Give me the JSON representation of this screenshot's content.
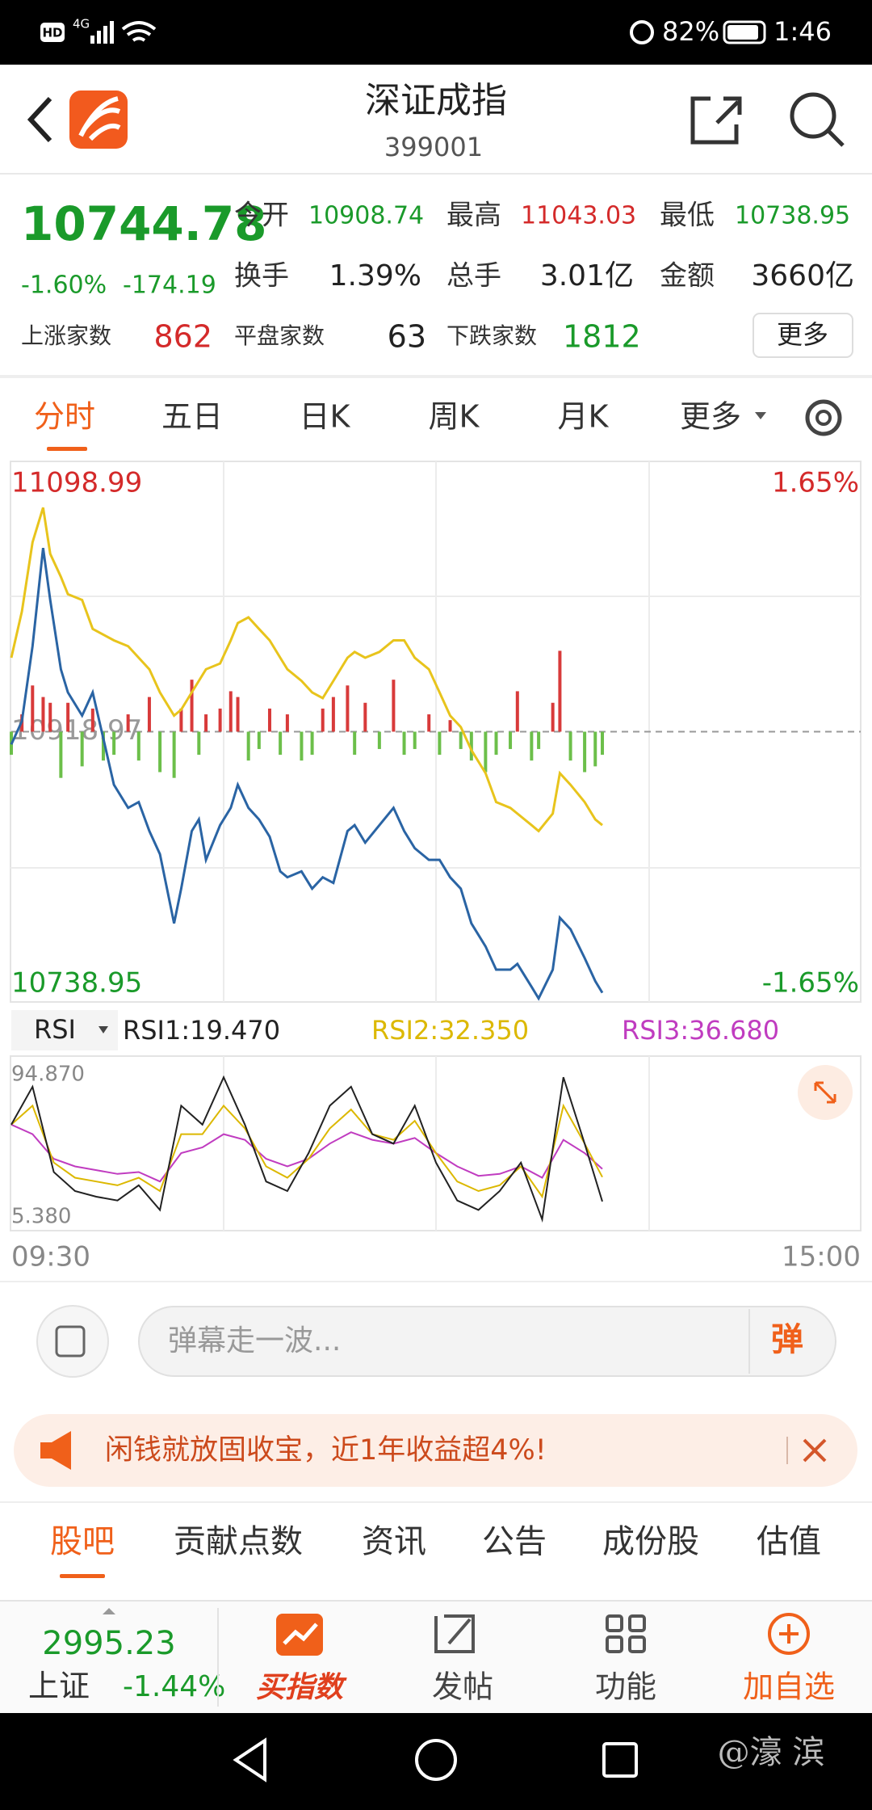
{
  "status_bar": {
    "hd": "HD",
    "network": "4G",
    "battery": "82%",
    "time": "1:46"
  },
  "header": {
    "title": "深证成指",
    "code": "399001"
  },
  "quote": {
    "price": "10744.78",
    "change_pct": "-1.60%",
    "change": "-174.19",
    "stats": [
      {
        "label": "今开",
        "value": "10908.74"
      },
      {
        "label": "最高",
        "value": "11043.03"
      },
      {
        "label": "最低",
        "value": "10738.95"
      },
      {
        "label": "换手",
        "value": "1.39%"
      },
      {
        "label": "总手",
        "value": "3.01亿"
      },
      {
        "label": "金额",
        "value": "3660亿"
      }
    ],
    "breadth": [
      {
        "label": "上涨家数",
        "value": "862"
      },
      {
        "label": "平盘家数",
        "value": "63"
      },
      {
        "label": "下跌家数",
        "value": "1812"
      }
    ],
    "more_button": "更多"
  },
  "chart_tabs": [
    "分时",
    "五日",
    "日K",
    "周K",
    "月K",
    "更多"
  ],
  "intraday": {
    "type": "line",
    "xlim": [
      0,
      240
    ],
    "xticks": [
      {
        "value": 0,
        "label": "09:30"
      },
      {
        "value": 240,
        "label": "15:00"
      }
    ],
    "ylim": [
      10738.95,
      11098.99
    ],
    "yticks": [
      10738.95,
      10918.97,
      11098.99
    ],
    "y2lim": [
      -1.65,
      1.65
    ],
    "y2ticks": [
      {
        "value": -1.65,
        "label": "-1.65%"
      },
      {
        "value": 1.65,
        "label": "1.65%"
      }
    ],
    "x": [
      0,
      3,
      6,
      9,
      11,
      14,
      16,
      20,
      23,
      26,
      29,
      33,
      36,
      39,
      42,
      46,
      48,
      51,
      53,
      55,
      59,
      62,
      64,
      67,
      70,
      73,
      76,
      78,
      82,
      85,
      88,
      91,
      95,
      97,
      100,
      104,
      108,
      111,
      114,
      118,
      121,
      124,
      127,
      130,
      134,
      137,
      141,
      143,
      147,
      149,
      153,
      155,
      158,
      162,
      165,
      167
    ],
    "series": [
      {
        "color": "#2a64a4",
        "values": [
          10910.5,
          10925.9,
          10975.9,
          11041.3,
          11006.7,
          10960.5,
          10945.1,
          10929.7,
          10945.1,
          10914.4,
          10883.6,
          10868.2,
          10872.1,
          10852.8,
          10837.4,
          10791.3,
          10814.4,
          10852.8,
          10860.5,
          10833.6,
          10856.7,
          10868.2,
          10883.6,
          10868.2,
          10860.5,
          10849.0,
          10825.9,
          10822.0,
          10825.9,
          10814.4,
          10822.0,
          10818.2,
          10852.8,
          10856.7,
          10845.1,
          10856.7,
          10868.2,
          10852.8,
          10841.3,
          10833.6,
          10833.6,
          10822.0,
          10814.4,
          10791.3,
          10775.9,
          10760.5,
          10760.5,
          10764.3,
          10749.0,
          10741.3,
          10760.5,
          10795.1,
          10787.4,
          10768.2,
          10752.8,
          10745.1
        ]
      },
      {
        "color": "#e8c41c",
        "values": [
          10968.2,
          10999.0,
          11045.1,
          11068.2,
          11037.4,
          11022.1,
          11010.5,
          11006.7,
          10987.4,
          10983.6,
          10979.8,
          10975.9,
          10968.2,
          10960.5,
          10945.1,
          10929.7,
          10933.6,
          10945.1,
          10952.8,
          10960.5,
          10964.4,
          10979.8,
          10991.3,
          10995.1,
          10987.4,
          10979.8,
          10968.2,
          10960.5,
          10952.8,
          10945.1,
          10941.3,
          10952.8,
          10968.2,
          10972.1,
          10968.2,
          10972.1,
          10979.8,
          10979.8,
          10968.2,
          10960.5,
          10945.1,
          10929.7,
          10922.1,
          10906.7,
          10891.3,
          10872.1,
          10868.2,
          10864.4,
          10856.7,
          10852.8,
          10864.4,
          10891.3,
          10883.6,
          10872.1,
          10860.5,
          10856.7
        ]
      }
    ],
    "volume": {
      "up_color": "#d83a3a",
      "down_color": "#6cbf4a",
      "values": [
        -20,
        15,
        40,
        30,
        25,
        -40,
        25,
        -30,
        20,
        -25,
        -20,
        15,
        -25,
        30,
        -35,
        -40,
        20,
        45,
        -20,
        15,
        20,
        35,
        30,
        -25,
        -15,
        20,
        -20,
        15,
        -25,
        -20,
        20,
        30,
        40,
        -20,
        25,
        -15,
        45,
        -20,
        -15,
        15,
        -20,
        10,
        -15,
        -25,
        -35,
        -20,
        -15,
        35,
        -25,
        -15,
        25,
        70,
        -25,
        -35,
        -30,
        -20
      ]
    }
  },
  "rsi": {
    "type": "line",
    "selector": "RSI",
    "ylim": [
      5.38,
      94.87
    ],
    "yticks": [
      {
        "value": 5.38,
        "label": "5.380"
      },
      {
        "value": 94.87,
        "label": "94.870"
      }
    ],
    "x": [
      0,
      6,
      12,
      18,
      24,
      30,
      36,
      42,
      48,
      54,
      60,
      66,
      72,
      78,
      84,
      90,
      96,
      102,
      108,
      114,
      120,
      126,
      132,
      138,
      144,
      150,
      156,
      162,
      167
    ],
    "series": [
      {
        "label": "RSI1:19.470",
        "color": "#222222",
        "values": [
          60,
          80,
          35,
          25,
          22,
          20,
          28,
          15,
          70,
          60,
          85,
          60,
          30,
          25,
          45,
          70,
          80,
          55,
          50,
          70,
          40,
          20,
          15,
          25,
          40,
          10,
          85,
          50,
          19.47
        ]
      },
      {
        "label": "RSI2:32.350",
        "color": "#dcb800",
        "values": [
          60,
          70,
          40,
          32,
          30,
          28,
          32,
          25,
          55,
          55,
          70,
          58,
          38,
          32,
          42,
          58,
          68,
          55,
          52,
          62,
          45,
          30,
          25,
          28,
          38,
          22,
          70,
          50,
          32.35
        ]
      },
      {
        "label": "RSI3:36.680",
        "color": "#c03cc0",
        "values": [
          60,
          55,
          42,
          38,
          36,
          34,
          35,
          30,
          45,
          48,
          55,
          52,
          42,
          38,
          42,
          50,
          56,
          52,
          50,
          53,
          45,
          38,
          33,
          34,
          38,
          32,
          52,
          45,
          36.68
        ]
      }
    ]
  },
  "comment": {
    "placeholder": "弹幕走一波...",
    "button": "弹"
  },
  "banner": {
    "text": "闲钱就放固收宝，近1年收益超4%!"
  },
  "bottom_tabs": [
    "股吧",
    "贡献点数",
    "资讯",
    "公告",
    "成份股",
    "估值"
  ],
  "footer": {
    "index_value": "2995.23",
    "index_name": "上证",
    "index_change": "-1.44%",
    "buttons": [
      "买指数",
      "发帖",
      "功能",
      "加自选"
    ]
  },
  "watermark": "@濠 滨"
}
